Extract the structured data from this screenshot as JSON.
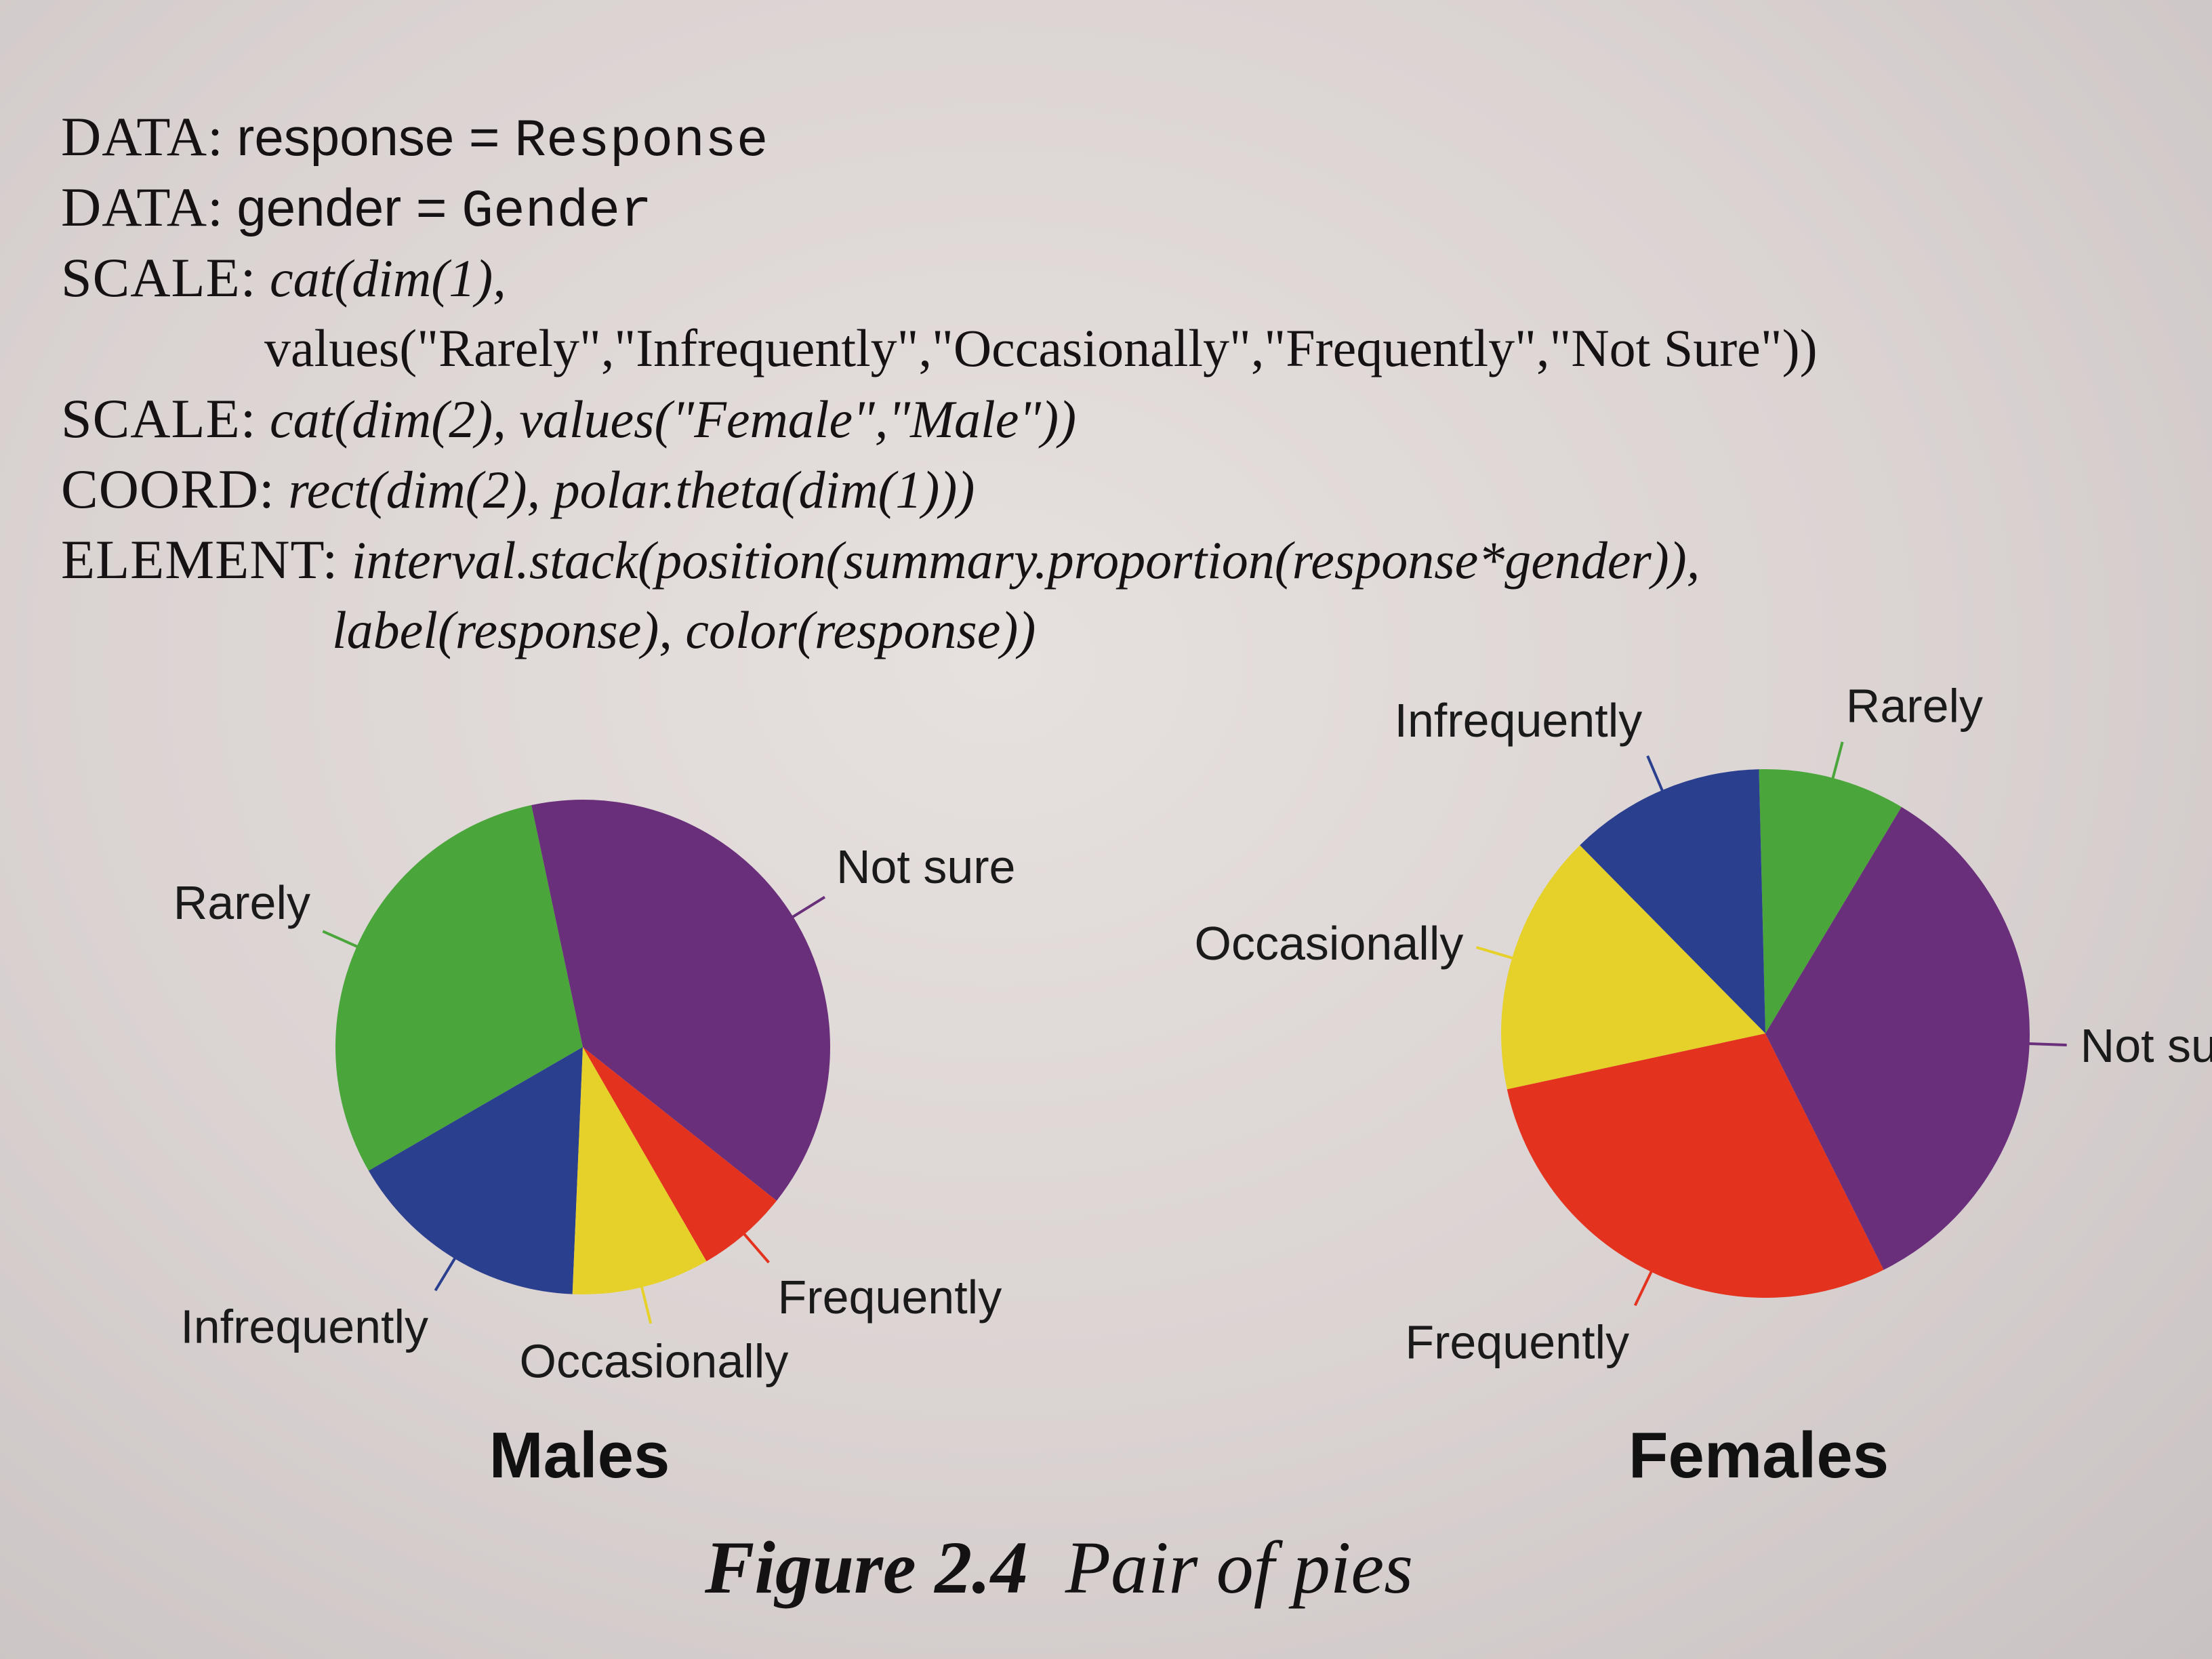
{
  "code": {
    "line1": {
      "keyword": "DATA:",
      "var": "response",
      "eq": " = ",
      "value": "Response"
    },
    "line2": {
      "keyword": "DATA:",
      "var": "gender",
      "eq": " = ",
      "value": "Gender"
    },
    "line3": {
      "keyword": "SCALE:",
      "text": "cat(dim(1),"
    },
    "line4": {
      "text": "values(\"Rarely\",\"Infrequently\",\"Occasionally\",\"Frequently\",\"Not Sure\"))"
    },
    "line5": {
      "keyword": "SCALE:",
      "text": "cat(dim(2), values(\"Female\",\"Male\"))"
    },
    "line6": {
      "keyword": "COORD:",
      "text": "rect(dim(2), polar.theta(dim(1)))"
    },
    "line7": {
      "keyword": "ELEMENT:",
      "text": "interval.stack(position(summary.proportion(response*gender)),"
    },
    "line8": {
      "text": "label(response), color(response))"
    }
  },
  "caption": {
    "number": "Figure 2.4",
    "title": "Pair of pies"
  },
  "colors": {
    "Rarely": "#4aa53a",
    "Infrequently": "#2b3f8f",
    "Occasionally": "#e6d12b",
    "Frequently": "#e3321e",
    "Not sure": "#6a2f7a"
  },
  "chart_data": [
    {
      "type": "pie",
      "title": "Males",
      "categories": [
        "Rarely",
        "Infrequently",
        "Occasionally",
        "Frequently",
        "Not sure"
      ],
      "values": [
        0.3,
        0.16,
        0.09,
        0.06,
        0.39
      ],
      "legend": "none",
      "labels_position": "outside with leader lines"
    },
    {
      "type": "pie",
      "title": "Females",
      "categories": [
        "Rarely",
        "Infrequently",
        "Occasionally",
        "Frequently",
        "Not sure"
      ],
      "values": [
        0.09,
        0.12,
        0.16,
        0.29,
        0.34
      ],
      "legend": "none",
      "labels_position": "outside with leader lines"
    }
  ]
}
